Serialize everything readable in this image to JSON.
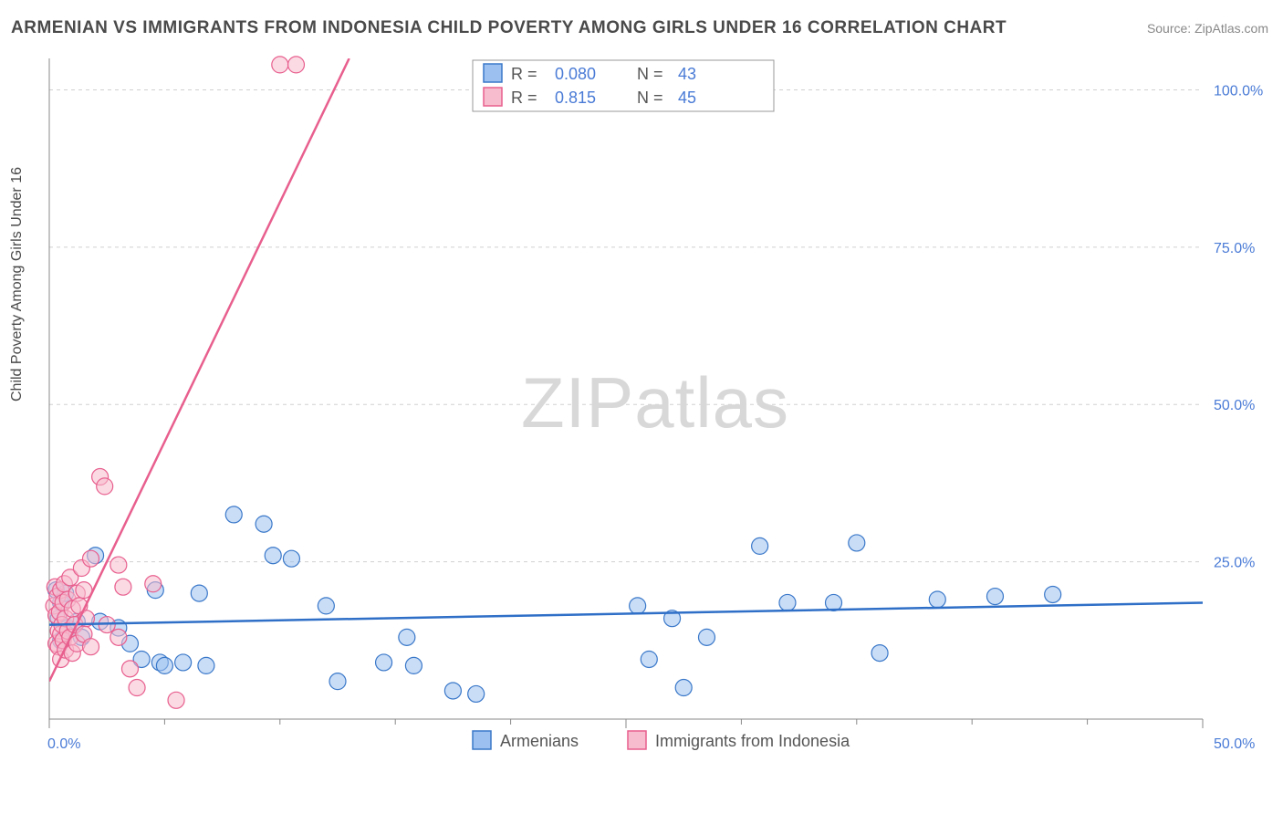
{
  "title": "ARMENIAN VS IMMIGRANTS FROM INDONESIA CHILD POVERTY AMONG GIRLS UNDER 16 CORRELATION CHART",
  "source_label": "Source:",
  "source_link_text": "ZipAtlas.com",
  "ylabel": "Child Poverty Among Girls Under 16",
  "watermark": "ZIPatlas",
  "chart": {
    "type": "scatter",
    "background_color": "#ffffff",
    "grid_color": "#d0d0d0",
    "axis_color": "#888888",
    "xlim": [
      0,
      50
    ],
    "ylim": [
      0,
      105
    ],
    "xticks": [
      0,
      25,
      50
    ],
    "xtick_labels": [
      "0.0%",
      "",
      "50.0%"
    ],
    "xminor_ticks": [
      5,
      10,
      15,
      20,
      30,
      35,
      40,
      45
    ],
    "yticks": [
      25,
      50,
      75,
      100
    ],
    "ytick_labels": [
      "25.0%",
      "50.0%",
      "75.0%",
      "100.0%"
    ],
    "marker_radius": 9,
    "marker_opacity": 0.55,
    "line_width": 2.5,
    "label_fontsize": 16,
    "tick_label_color": "#4a7bd6"
  },
  "series": [
    {
      "name": "Armenians",
      "fill_color": "#9cc1f0",
      "stroke_color": "#3a78c9",
      "legend_R": "0.080",
      "legend_N": "43",
      "trend": {
        "x1": 0,
        "y1": 15.0,
        "x2": 50,
        "y2": 18.5,
        "color": "#2f6fc7"
      },
      "points": [
        [
          0.3,
          20.5
        ],
        [
          0.4,
          16.0
        ],
        [
          0.5,
          18.5
        ],
        [
          0.5,
          12.5
        ],
        [
          0.7,
          20.0
        ],
        [
          0.8,
          14.5
        ],
        [
          1.2,
          15.5
        ],
        [
          1.4,
          13.0
        ],
        [
          2.0,
          26.0
        ],
        [
          2.2,
          15.5
        ],
        [
          3.0,
          14.5
        ],
        [
          3.5,
          12.0
        ],
        [
          4.0,
          9.5
        ],
        [
          4.6,
          20.5
        ],
        [
          4.8,
          9.0
        ],
        [
          5.0,
          8.5
        ],
        [
          5.8,
          9.0
        ],
        [
          6.5,
          20.0
        ],
        [
          6.8,
          8.5
        ],
        [
          8.0,
          32.5
        ],
        [
          9.3,
          31.0
        ],
        [
          9.7,
          26.0
        ],
        [
          10.5,
          25.5
        ],
        [
          12.0,
          18.0
        ],
        [
          12.5,
          6.0
        ],
        [
          14.5,
          9.0
        ],
        [
          15.5,
          13.0
        ],
        [
          15.8,
          8.5
        ],
        [
          17.5,
          4.5
        ],
        [
          18.5,
          4.0
        ],
        [
          25.5,
          18.0
        ],
        [
          26.0,
          9.5
        ],
        [
          27.0,
          16.0
        ],
        [
          27.5,
          5.0
        ],
        [
          28.5,
          13.0
        ],
        [
          30.8,
          27.5
        ],
        [
          32.0,
          18.5
        ],
        [
          34.0,
          18.5
        ],
        [
          35.0,
          28.0
        ],
        [
          36.0,
          10.5
        ],
        [
          38.5,
          19.0
        ],
        [
          41.0,
          19.5
        ],
        [
          43.5,
          19.8
        ]
      ]
    },
    {
      "name": "Immigrants from Indonesia",
      "fill_color": "#f7bccd",
      "stroke_color": "#e85f8e",
      "legend_R": "0.815",
      "legend_N": "45",
      "trend": {
        "x1": 0,
        "y1": 6.0,
        "x2": 13.0,
        "y2": 105,
        "color": "#e85f8e"
      },
      "points": [
        [
          0.2,
          18.0
        ],
        [
          0.25,
          21.0
        ],
        [
          0.3,
          12.0
        ],
        [
          0.3,
          16.5
        ],
        [
          0.35,
          19.5
        ],
        [
          0.4,
          14.0
        ],
        [
          0.4,
          11.5
        ],
        [
          0.45,
          17.0
        ],
        [
          0.5,
          20.5
        ],
        [
          0.5,
          13.5
        ],
        [
          0.5,
          9.5
        ],
        [
          0.55,
          15.0
        ],
        [
          0.6,
          12.5
        ],
        [
          0.6,
          18.5
        ],
        [
          0.65,
          21.5
        ],
        [
          0.7,
          16.0
        ],
        [
          0.7,
          11.0
        ],
        [
          0.8,
          14.0
        ],
        [
          0.8,
          19.0
        ],
        [
          0.9,
          13.0
        ],
        [
          0.9,
          22.5
        ],
        [
          1.0,
          17.5
        ],
        [
          1.0,
          10.5
        ],
        [
          1.1,
          15.0
        ],
        [
          1.2,
          20.0
        ],
        [
          1.2,
          12.0
        ],
        [
          1.3,
          18.0
        ],
        [
          1.4,
          24.0
        ],
        [
          1.5,
          13.5
        ],
        [
          1.5,
          20.5
        ],
        [
          1.6,
          16.0
        ],
        [
          1.8,
          11.5
        ],
        [
          1.8,
          25.5
        ],
        [
          2.2,
          38.5
        ],
        [
          2.4,
          37.0
        ],
        [
          2.5,
          15.0
        ],
        [
          3.0,
          24.5
        ],
        [
          3.0,
          13.0
        ],
        [
          3.2,
          21.0
        ],
        [
          3.5,
          8.0
        ],
        [
          3.8,
          5.0
        ],
        [
          4.5,
          21.5
        ],
        [
          5.5,
          3.0
        ],
        [
          10.0,
          104.0
        ],
        [
          10.7,
          104.0
        ]
      ]
    }
  ],
  "legend_top": {
    "R_label": "R =",
    "N_label": "N ="
  },
  "legend_bottom": {
    "items": [
      "Armenians",
      "Immigrants from Indonesia"
    ]
  }
}
